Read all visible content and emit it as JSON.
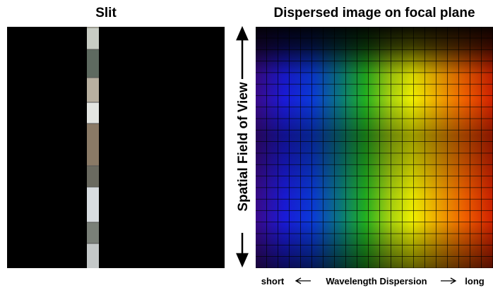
{
  "left_panel": {
    "title": "Slit"
  },
  "right_panel": {
    "title": "Dispersed image on focal plane",
    "vertical_label": "Spatial Field of View",
    "short_label": "short",
    "axis_label": "Wavelength Dispersion",
    "long_label": "long"
  }
}
